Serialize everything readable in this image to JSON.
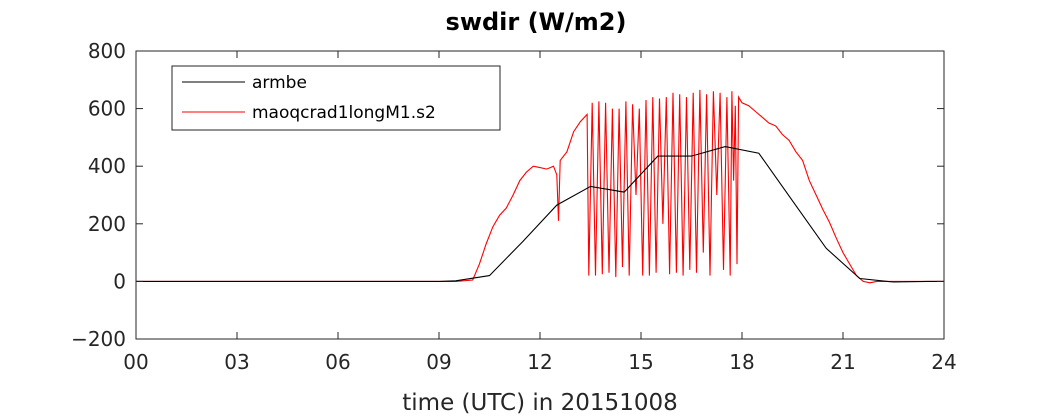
{
  "chart_data": {
    "type": "line",
    "title": "swdir  (W/m2)",
    "xlabel": "time (UTC) in 20151008",
    "ylabel": "",
    "xlim": [
      0,
      24
    ],
    "ylim": [
      -200,
      800
    ],
    "x_ticks": [
      0,
      3,
      6,
      9,
      12,
      15,
      18,
      21,
      24
    ],
    "x_tick_labels": [
      "00",
      "03",
      "06",
      "09",
      "12",
      "15",
      "18",
      "21",
      "24"
    ],
    "y_ticks": [
      -200,
      0,
      200,
      400,
      600,
      800
    ],
    "y_tick_labels": [
      "−200",
      "0",
      "200",
      "400",
      "600",
      "800"
    ],
    "legend_position": "top-left",
    "series": [
      {
        "name": "armbe",
        "color": "#000000",
        "x": [
          0,
          1,
          2,
          3,
          4,
          5,
          6,
          7,
          8,
          9,
          9.5,
          10.5,
          11.5,
          12.5,
          13.5,
          14.5,
          15.5,
          16.5,
          17.5,
          18.5,
          19.5,
          20.5,
          21.5,
          22.5,
          23.5,
          24
        ],
        "y": [
          0,
          0,
          0,
          0,
          0,
          0,
          0,
          0,
          0,
          0,
          2,
          20,
          140,
          265,
          330,
          310,
          435,
          435,
          468,
          445,
          280,
          115,
          10,
          -2,
          0,
          0
        ]
      },
      {
        "name": "maoqcrad1longM1.s2",
        "color": "#ff0000",
        "x": [
          0,
          2,
          4,
          6,
          8,
          9.5,
          10,
          10.2,
          10.4,
          10.6,
          10.8,
          11.0,
          11.2,
          11.4,
          11.6,
          11.8,
          12.0,
          12.2,
          12.4,
          12.5,
          12.55,
          12.6,
          12.8,
          13.0,
          13.2,
          13.4,
          13.45,
          13.55,
          13.65,
          13.75,
          13.85,
          13.95,
          14.05,
          14.15,
          14.25,
          14.35,
          14.45,
          14.55,
          14.65,
          14.75,
          14.85,
          14.95,
          15.05,
          15.15,
          15.25,
          15.35,
          15.45,
          15.55,
          15.65,
          15.75,
          15.85,
          15.95,
          16.05,
          16.15,
          16.25,
          16.35,
          16.45,
          16.55,
          16.65,
          16.75,
          16.85,
          16.95,
          17.05,
          17.15,
          17.25,
          17.35,
          17.45,
          17.55,
          17.65,
          17.7,
          17.75,
          17.8,
          17.85,
          17.9,
          18.0,
          18.2,
          18.4,
          18.6,
          18.8,
          19.0,
          19.2,
          19.4,
          19.6,
          19.8,
          20.0,
          20.2,
          20.4,
          20.6,
          20.8,
          21.0,
          21.2,
          21.4,
          21.6,
          21.8,
          22.0,
          23,
          24
        ],
        "y": [
          0,
          0,
          0,
          0,
          0,
          0,
          5,
          60,
          130,
          190,
          230,
          255,
          300,
          350,
          380,
          400,
          395,
          390,
          400,
          370,
          210,
          420,
          450,
          520,
          555,
          580,
          20,
          620,
          20,
          625,
          25,
          620,
          30,
          600,
          15,
          600,
          50,
          625,
          20,
          615,
          300,
          600,
          20,
          630,
          20,
          640,
          30,
          635,
          200,
          640,
          25,
          655,
          30,
          650,
          20,
          640,
          40,
          655,
          30,
          665,
          100,
          650,
          20,
          660,
          300,
          655,
          40,
          640,
          20,
          660,
          350,
          610,
          60,
          640,
          620,
          610,
          590,
          570,
          550,
          540,
          510,
          490,
          450,
          420,
          350,
          300,
          250,
          205,
          150,
          100,
          60,
          20,
          0,
          -5,
          0,
          0,
          0
        ]
      }
    ]
  }
}
